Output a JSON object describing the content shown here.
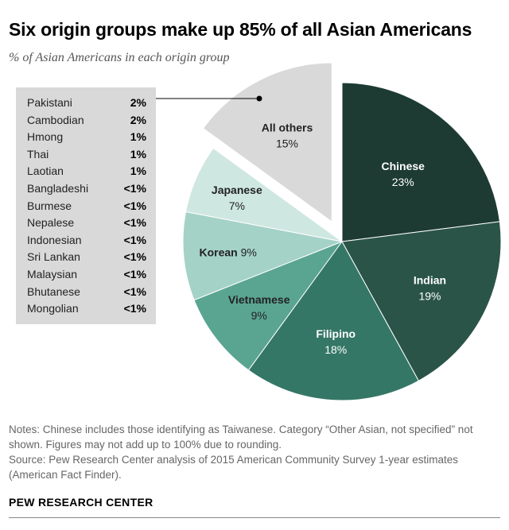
{
  "title": "Six origin groups make up 85% of all Asian Americans",
  "subtitle": "% of Asian Americans in each origin group",
  "chart_data": {
    "type": "pie",
    "slices": [
      {
        "name": "Chinese",
        "label": "23%",
        "value": 23,
        "color": "#1d3b33"
      },
      {
        "name": "Indian",
        "label": "19%",
        "value": 19,
        "color": "#2a5448"
      },
      {
        "name": "Filipino",
        "label": "18%",
        "value": 18,
        "color": "#357766"
      },
      {
        "name": "Vietnamese",
        "label": "9%",
        "value": 9,
        "color": "#5aa492"
      },
      {
        "name": "Korean",
        "label": "9%",
        "value": 9,
        "color": "#a4d2c7"
      },
      {
        "name": "Japanese",
        "label": "7%",
        "value": 7,
        "color": "#cfe7e1"
      },
      {
        "name": "All others",
        "label": "15%",
        "value": 15,
        "color": "#d9d9d9",
        "exploded": true
      }
    ],
    "all_others_breakdown": [
      {
        "name": "Pakistani",
        "value": "2%"
      },
      {
        "name": "Cambodian",
        "value": "2%"
      },
      {
        "name": "Hmong",
        "value": "1%"
      },
      {
        "name": "Thai",
        "value": "1%"
      },
      {
        "name": "Laotian",
        "value": "1%"
      },
      {
        "name": "Bangladeshi",
        "value": "<1%"
      },
      {
        "name": "Burmese",
        "value": "<1%"
      },
      {
        "name": "Nepalese",
        "value": "<1%"
      },
      {
        "name": "Indonesian",
        "value": "<1%"
      },
      {
        "name": "Sri Lankan",
        "value": "<1%"
      },
      {
        "name": "Malaysian",
        "value": "<1%"
      },
      {
        "name": "Bhutanese",
        "value": "<1%"
      },
      {
        "name": "Mongolian",
        "value": "<1%"
      }
    ]
  },
  "notes": {
    "line1": "Notes: Chinese includes those identifying as Taiwanese. Category “Other Asian, not specified” not shown. Figures may not add up to 100% due to rounding.",
    "line2": "Source: Pew Research Center analysis of 2015 American Community Survey 1-year estimates (American Fact Finder)."
  },
  "brand": "PEW RESEARCH CENTER"
}
